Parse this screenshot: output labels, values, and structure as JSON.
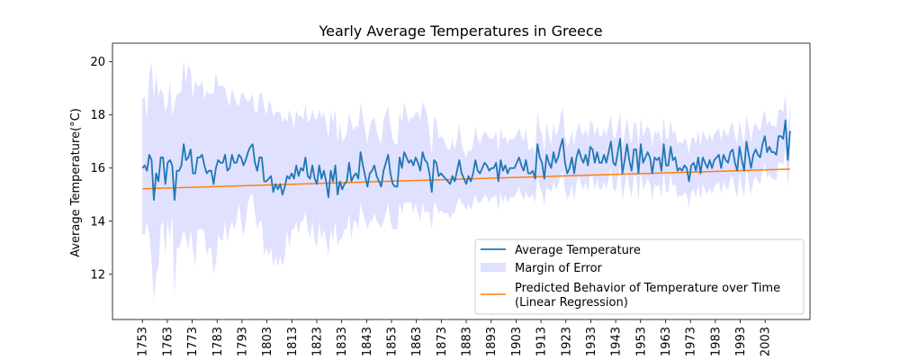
{
  "chart_data": {
    "type": "line",
    "title": "Yearly Average Temperatures in Greece",
    "xlabel": "",
    "ylabel": "Average Temperature(°C)",
    "xlim": [
      1741,
      2021
    ],
    "ylim": [
      10.3,
      20.7
    ],
    "yticks": [
      12,
      14,
      16,
      18,
      20
    ],
    "xticks": [
      1753,
      1763,
      1773,
      1783,
      1793,
      1803,
      1813,
      1823,
      1833,
      1843,
      1853,
      1863,
      1873,
      1883,
      1893,
      1903,
      1913,
      1923,
      1933,
      1943,
      1953,
      1963,
      1973,
      1983,
      1993,
      2003
    ],
    "grid": false,
    "legend_position": "lower-right",
    "colors": {
      "temperature": "#1f77b4",
      "margin": "#e0e0ff",
      "regression": "#ff7f0e"
    },
    "x_start": 1753,
    "x_end": 2013,
    "series": [
      {
        "name": "Average Temperature",
        "values": [
          16.0,
          16.1,
          15.9,
          16.5,
          16.3,
          14.8,
          15.8,
          15.5,
          16.4,
          16.4,
          15.4,
          16.2,
          16.3,
          16.1,
          14.8,
          15.9,
          15.9,
          16.1,
          16.9,
          16.3,
          16.4,
          16.7,
          15.8,
          15.8,
          16.4,
          16.4,
          16.5,
          16.1,
          15.8,
          15.9,
          15.9,
          15.4,
          16.0,
          16.3,
          16.2,
          16.2,
          16.5,
          15.9,
          16.0,
          16.5,
          16.2,
          16.2,
          16.5,
          16.4,
          16.1,
          16.3,
          16.6,
          16.8,
          16.9,
          16.2,
          15.9,
          16.4,
          16.4,
          15.5,
          15.5,
          15.6,
          15.7,
          15.1,
          15.4,
          15.2,
          15.4,
          15.0,
          15.3,
          15.7,
          15.6,
          15.8,
          15.6,
          16.1,
          15.7,
          16.0,
          15.9,
          16.4,
          15.7,
          15.6,
          16.1,
          15.6,
          15.4,
          16.1,
          15.6,
          15.9,
          15.5,
          14.9,
          15.9,
          15.5,
          16.1,
          15.0,
          15.5,
          15.2,
          15.4,
          15.5,
          16.2,
          15.5,
          15.7,
          15.8,
          15.6,
          16.6,
          16.1,
          15.7,
          15.3,
          15.8,
          15.9,
          16.1,
          15.7,
          15.5,
          15.3,
          15.9,
          16.2,
          16.5,
          15.8,
          15.4,
          15.3,
          15.3,
          16.4,
          16.0,
          16.6,
          16.4,
          16.2,
          16.3,
          16.1,
          16.4,
          16.2,
          15.9,
          16.6,
          16.3,
          16.2,
          15.8,
          15.1,
          16.3,
          16.2,
          15.7,
          15.8,
          15.7,
          15.6,
          15.5,
          15.4,
          15.7,
          15.5,
          15.9,
          16.3,
          15.8,
          15.6,
          15.4,
          15.7,
          15.5,
          15.8,
          16.3,
          15.9,
          15.8,
          16.0,
          16.2,
          16.1,
          15.9,
          16.0,
          16.0,
          16.2,
          15.5,
          16.3,
          15.9,
          16.1,
          15.8,
          16.0,
          16.0,
          16.0,
          16.2,
          16.4,
          16.1,
          15.9,
          16.3,
          15.8,
          15.8,
          15.9,
          15.6,
          16.9,
          16.4,
          16.2,
          15.6,
          16.5,
          16.2,
          16.0,
          16.6,
          16.2,
          16.4,
          16.8,
          17.1,
          16.2,
          15.8,
          16.0,
          16.4,
          15.8,
          16.4,
          16.7,
          16.4,
          16.2,
          16.5,
          16.1,
          16.8,
          16.7,
          16.2,
          16.6,
          16.2,
          16.2,
          16.5,
          16.2,
          16.6,
          17.0,
          16.2,
          16.1,
          16.6,
          17.1,
          15.8,
          16.3,
          16.9,
          16.3,
          15.9,
          16.7,
          16.7,
          15.8,
          16.9,
          16.2,
          16.4,
          16.6,
          16.4,
          15.8,
          16.4,
          16.3,
          16.4,
          15.9,
          16.9,
          16.1,
          16.1,
          16.8,
          16.3,
          16.4,
          15.9,
          16.0,
          15.9,
          16.1,
          16.0,
          15.5,
          16.1,
          16.2,
          15.9,
          16.4,
          15.8,
          16.4,
          16.2,
          16.0,
          16.3,
          16.0,
          16.3,
          16.4,
          16.5,
          16.0,
          16.5,
          16.3,
          16.2,
          16.6,
          16.7,
          16.2,
          15.9,
          16.8,
          16.3,
          15.9,
          17.0,
          16.5,
          16.0,
          16.5,
          16.7,
          16.5,
          16.4,
          16.9,
          17.2,
          16.6,
          16.8,
          16.6,
          16.6,
          16.5,
          17.2,
          17.2,
          17.1,
          17.8,
          16.3,
          17.4
        ]
      },
      {
        "name": "Margin of Error",
        "lower": [
          13.5,
          13.5,
          14.0,
          13.5,
          12.5,
          11.0,
          12.0,
          12.3,
          13.8,
          14.0,
          12.7,
          14.0,
          13.3,
          14.3,
          11.2,
          13.0,
          13.0,
          13.3,
          13.7,
          13.4,
          12.9,
          13.7,
          13.0,
          12.3,
          13.7,
          13.7,
          13.7,
          13.6,
          12.7,
          13.0,
          13.0,
          12.0,
          12.4,
          13.5,
          13.3,
          13.3,
          14.0,
          13.2,
          13.7,
          14.0,
          13.7,
          14.0,
          14.7,
          14.0,
          13.4,
          14.0,
          14.7,
          15.0,
          15.0,
          14.3,
          13.7,
          14.0,
          14.0,
          12.7,
          13.0,
          12.7,
          13.0,
          12.3,
          12.7,
          12.3,
          12.7,
          12.3,
          12.7,
          13.7,
          13.0,
          13.7,
          13.7,
          14.0,
          13.5,
          14.0,
          14.0,
          14.4,
          13.7,
          13.4,
          14.0,
          13.3,
          13.0,
          14.0,
          13.3,
          13.7,
          13.3,
          12.7,
          13.7,
          13.3,
          14.0,
          13.1,
          13.3,
          13.4,
          13.7,
          13.7,
          14.3,
          13.3,
          14.0,
          14.0,
          13.7,
          14.7,
          14.3,
          14.0,
          13.7,
          14.0,
          14.0,
          14.3,
          14.0,
          13.9,
          13.7,
          14.0,
          14.3,
          14.7,
          14.0,
          13.7,
          13.7,
          13.7,
          14.7,
          14.3,
          14.7,
          14.7,
          14.7,
          14.7,
          14.3,
          14.7,
          14.3,
          14.0,
          14.7,
          14.3,
          14.4,
          14.3,
          13.7,
          14.7,
          14.6,
          14.3,
          14.4,
          14.3,
          14.3,
          14.3,
          14.1,
          14.3,
          14.3,
          14.7,
          14.9,
          14.7,
          14.6,
          14.4,
          14.7,
          14.4,
          14.7,
          15.0,
          14.7,
          14.7,
          14.8,
          15.0,
          14.9,
          14.7,
          14.9,
          14.9,
          15.0,
          14.4,
          15.1,
          14.7,
          15.0,
          14.7,
          14.9,
          14.9,
          14.9,
          15.1,
          15.3,
          15.0,
          14.8,
          15.1,
          14.9,
          14.9,
          15.0,
          14.7,
          15.7,
          15.3,
          15.1,
          14.6,
          15.3,
          15.2,
          15.1,
          15.5,
          15.2,
          15.4,
          15.7,
          15.9,
          15.2,
          14.8,
          15.0,
          15.4,
          14.8,
          15.4,
          15.7,
          15.4,
          15.2,
          15.5,
          15.1,
          15.8,
          15.7,
          15.2,
          15.6,
          15.2,
          15.2,
          15.5,
          15.2,
          15.6,
          16.0,
          15.2,
          15.1,
          15.6,
          16.1,
          14.8,
          15.3,
          15.9,
          15.3,
          14.9,
          15.7,
          15.7,
          14.8,
          15.9,
          15.2,
          15.4,
          15.6,
          15.4,
          14.8,
          15.4,
          15.3,
          15.4,
          14.9,
          15.9,
          15.1,
          15.1,
          15.8,
          15.3,
          15.4,
          14.9,
          15.0,
          14.9,
          15.1,
          15.0,
          14.5,
          15.1,
          15.2,
          14.9,
          15.4,
          14.8,
          15.4,
          15.2,
          15.0,
          15.3,
          15.0,
          15.3,
          15.4,
          15.5,
          15.0,
          15.5,
          15.3,
          15.2,
          15.6,
          15.7,
          15.2,
          14.9,
          15.8,
          15.3,
          14.9,
          16.0,
          15.5,
          15.0,
          15.5,
          15.7,
          15.5,
          15.4,
          15.9,
          16.2,
          15.6,
          15.8,
          15.6,
          15.6,
          15.5,
          16.2,
          16.2,
          16.1,
          16.8,
          15.3,
          16.4
        ],
        "upper": [
          18.6,
          18.7,
          17.8,
          19.5,
          20.0,
          18.6,
          19.5,
          18.7,
          19.0,
          18.8,
          18.1,
          18.4,
          19.3,
          17.9,
          18.4,
          18.8,
          18.8,
          18.9,
          20.1,
          19.2,
          19.9,
          19.7,
          18.6,
          19.3,
          19.1,
          19.1,
          19.3,
          18.6,
          18.9,
          18.8,
          18.8,
          18.8,
          19.6,
          19.1,
          19.1,
          19.1,
          19.0,
          18.6,
          18.3,
          19.0,
          18.7,
          18.4,
          18.3,
          18.8,
          18.8,
          18.6,
          18.5,
          18.6,
          18.8,
          18.1,
          18.1,
          18.8,
          18.8,
          18.3,
          18.0,
          18.5,
          18.4,
          17.9,
          18.1,
          18.1,
          18.1,
          17.7,
          17.9,
          17.7,
          18.2,
          17.9,
          17.5,
          18.2,
          17.9,
          18.0,
          17.8,
          18.4,
          17.7,
          17.8,
          18.2,
          17.9,
          17.8,
          18.2,
          17.9,
          18.1,
          17.7,
          17.1,
          18.1,
          17.7,
          18.2,
          16.9,
          17.7,
          17.0,
          17.1,
          17.3,
          18.1,
          17.7,
          17.4,
          17.6,
          17.5,
          18.5,
          17.9,
          17.4,
          16.9,
          17.6,
          17.8,
          17.9,
          17.4,
          17.1,
          16.9,
          17.8,
          18.1,
          18.3,
          17.6,
          17.1,
          16.9,
          16.9,
          18.1,
          17.7,
          18.5,
          18.1,
          17.7,
          17.9,
          17.9,
          18.1,
          18.1,
          17.8,
          18.5,
          18.3,
          18.0,
          17.3,
          16.5,
          17.9,
          17.8,
          17.1,
          17.2,
          17.1,
          16.9,
          16.7,
          16.7,
          17.1,
          16.7,
          17.1,
          17.7,
          16.9,
          16.6,
          16.4,
          16.7,
          16.6,
          16.9,
          17.6,
          17.1,
          16.9,
          17.2,
          17.4,
          17.3,
          17.1,
          17.1,
          17.1,
          17.4,
          16.6,
          17.5,
          17.1,
          17.2,
          16.9,
          17.1,
          17.1,
          17.1,
          17.3,
          17.5,
          17.2,
          17.0,
          17.5,
          16.7,
          16.7,
          16.8,
          16.5,
          18.1,
          17.5,
          17.3,
          16.6,
          17.7,
          17.2,
          16.9,
          17.7,
          17.2,
          17.4,
          17.9,
          18.3,
          17.2,
          16.8,
          17.0,
          17.4,
          16.8,
          17.4,
          17.7,
          17.4,
          17.2,
          17.5,
          17.1,
          17.8,
          17.7,
          17.2,
          17.6,
          17.2,
          17.2,
          17.5,
          17.2,
          17.6,
          18.0,
          17.2,
          17.1,
          17.6,
          18.1,
          16.8,
          17.3,
          17.9,
          17.3,
          16.9,
          17.7,
          17.7,
          16.8,
          17.9,
          17.2,
          17.4,
          17.6,
          17.4,
          16.8,
          17.4,
          17.3,
          17.4,
          16.9,
          17.9,
          17.1,
          17.1,
          17.8,
          17.3,
          17.4,
          16.9,
          17.0,
          16.9,
          17.1,
          17.0,
          16.5,
          17.1,
          17.2,
          16.9,
          17.4,
          16.8,
          17.4,
          17.2,
          17.0,
          17.3,
          17.0,
          17.3,
          17.4,
          17.5,
          17.0,
          17.5,
          17.3,
          17.2,
          17.6,
          17.7,
          17.2,
          16.9,
          17.8,
          17.3,
          16.9,
          18.0,
          17.5,
          17.0,
          17.5,
          17.7,
          17.5,
          17.4,
          17.9,
          18.2,
          17.6,
          17.8,
          17.6,
          17.6,
          17.5,
          18.2,
          18.2,
          18.1,
          18.8,
          17.3,
          18.4
        ]
      },
      {
        "name": "Predicted Behavior of Temperature over Time\n(Linear Regression)",
        "x": [
          1753,
          2013
        ],
        "values": [
          15.22,
          15.96
        ]
      }
    ]
  }
}
